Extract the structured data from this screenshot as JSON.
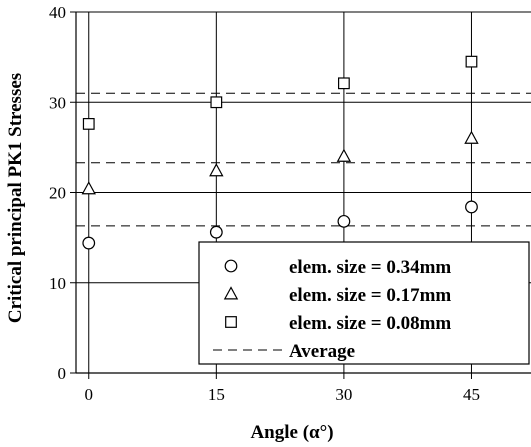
{
  "chart_data": {
    "type": "scatter",
    "x": [
      0,
      15,
      30,
      45
    ],
    "xlabel": "Angle (α°)",
    "ylabel": "Critical principal PK1 Stresses",
    "xlim": [
      -1.5,
      52
    ],
    "ylim": [
      0,
      40
    ],
    "xticks": [
      "0",
      "15",
      "30",
      "45"
    ],
    "yticks": [
      "0",
      "10",
      "20",
      "30",
      "40"
    ],
    "grid": true,
    "legend_position": "bottom-right",
    "series": [
      {
        "name": "elem. size = 0.34mm",
        "marker": "circle",
        "values": [
          14.4,
          15.6,
          16.8,
          18.4
        ],
        "average": 16.3
      },
      {
        "name": "elem. size = 0.17mm",
        "marker": "triangle",
        "values": [
          20.4,
          22.4,
          24.0,
          26.0
        ],
        "average": 23.3
      },
      {
        "name": "elem. size = 0.08mm",
        "marker": "square",
        "values": [
          27.6,
          30.0,
          32.1,
          34.5
        ],
        "average": 31.0
      }
    ],
    "legend": [
      {
        "marker": "circle",
        "label": "elem. size = 0.34mm"
      },
      {
        "marker": "triangle",
        "label": "elem. size = 0.17mm"
      },
      {
        "marker": "square",
        "label": "elem. size = 0.08mm"
      },
      {
        "marker": "dashed-line",
        "label": "Average"
      }
    ]
  }
}
